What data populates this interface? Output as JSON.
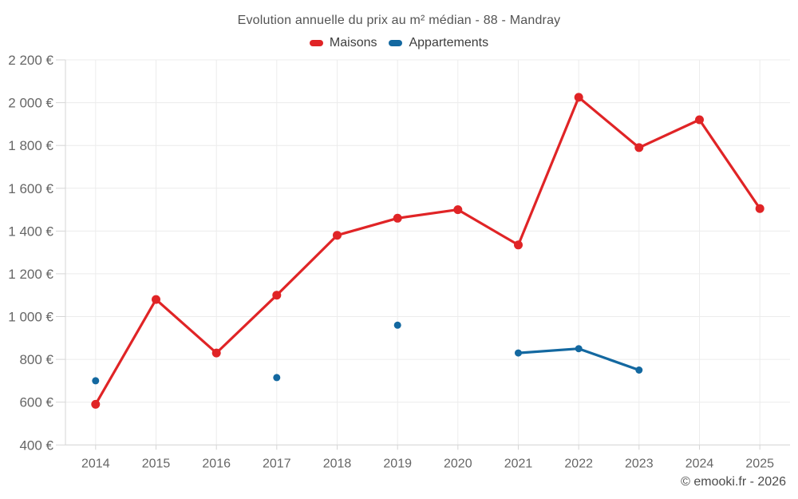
{
  "chart_data": {
    "type": "line",
    "title": "Evolution annuelle du prix au m² médian - 88 - Mandray",
    "categories": [
      "2014",
      "2015",
      "2016",
      "2017",
      "2018",
      "2019",
      "2020",
      "2021",
      "2022",
      "2023",
      "2024",
      "2025"
    ],
    "series": [
      {
        "name": "Maisons",
        "color": "#e02426",
        "values": [
          590,
          1080,
          830,
          1100,
          1380,
          1460,
          1500,
          1335,
          2025,
          1790,
          1920,
          1505
        ]
      },
      {
        "name": "Appartements",
        "color": "#1368a0",
        "values": [
          700,
          null,
          null,
          715,
          null,
          960,
          null,
          830,
          850,
          750,
          null,
          null
        ]
      }
    ],
    "y_ticks": [
      {
        "v": 400,
        "label": "400 €"
      },
      {
        "v": 600,
        "label": "600 €"
      },
      {
        "v": 800,
        "label": "800 €"
      },
      {
        "v": 1000,
        "label": "1 000 €"
      },
      {
        "v": 1200,
        "label": "1 200 €"
      },
      {
        "v": 1400,
        "label": "1 400 €"
      },
      {
        "v": 1600,
        "label": "1 600 €"
      },
      {
        "v": 1800,
        "label": "1 800 €"
      },
      {
        "v": 2000,
        "label": "2 000 €"
      },
      {
        "v": 2200,
        "label": "2 200 €"
      }
    ],
    "ylim": [
      400,
      2200
    ],
    "xlabel": "",
    "ylabel": "",
    "grid": true,
    "legend_position": "top",
    "currency": "€"
  },
  "footer": {
    "copyright": "© emooki.fr - 2026"
  },
  "colors": {
    "grid": "#ececec",
    "axis": "#d6d6d6"
  }
}
